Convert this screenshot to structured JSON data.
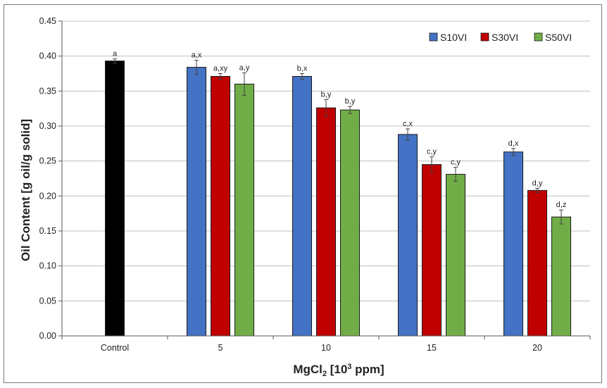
{
  "chart_data": {
    "type": "bar",
    "categories": [
      "Control",
      "5",
      "10",
      "15",
      "20"
    ],
    "ylabel": "Oil Content [g oil/g solid]",
    "xlabel": {
      "base": "MgCl",
      "sub": "2",
      "mid": " [10",
      "sup": "3",
      "tail": " ppm]"
    },
    "ylim": [
      0,
      0.45
    ],
    "yticks": [
      "0.00",
      "0.05",
      "0.10",
      "0.15",
      "0.20",
      "0.25",
      "0.30",
      "0.35",
      "0.40",
      "0.45"
    ],
    "grid": true,
    "legend_position": "top-right",
    "control": {
      "value": 0.393,
      "error": 0.003,
      "label": "a",
      "color": "#000000"
    },
    "series": [
      {
        "name": "S10VI",
        "color": "#4472C4",
        "values": [
          null,
          0.384,
          0.371,
          0.288,
          0.263
        ],
        "errors": [
          null,
          0.01,
          0.004,
          0.008,
          0.005
        ],
        "labels": [
          "",
          "a,x",
          "b,x",
          "c,x",
          "d,x"
        ]
      },
      {
        "name": "S30VI",
        "color": "#C00000",
        "values": [
          null,
          0.371,
          0.326,
          0.245,
          0.208
        ],
        "errors": [
          null,
          0.004,
          0.012,
          0.011,
          0.003
        ],
        "labels": [
          "",
          "a,xy",
          "b,y",
          "c,y",
          "d,y"
        ]
      },
      {
        "name": "S50VI",
        "color": "#70AD47",
        "values": [
          null,
          0.36,
          0.323,
          0.231,
          0.17
        ],
        "errors": [
          null,
          0.016,
          0.005,
          0.01,
          0.01
        ],
        "labels": [
          "",
          "a,y",
          "b,y",
          "c,y",
          "d,z"
        ]
      }
    ]
  }
}
